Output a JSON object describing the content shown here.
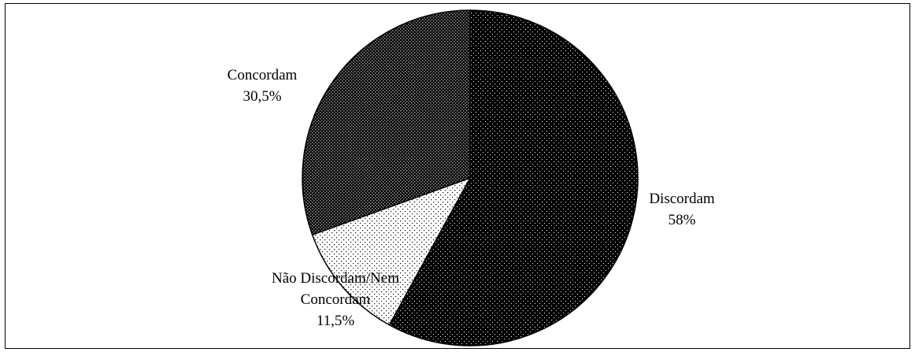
{
  "chart_data": {
    "type": "pie",
    "slices": [
      {
        "label_lines": [
          "Discordam",
          "58%"
        ],
        "value": 58,
        "pattern": "dense-dots"
      },
      {
        "label_lines": [
          "Não Discordam/Nem",
          "Concordam",
          "11,5%"
        ],
        "value": 11.5,
        "pattern": "sparse-dots"
      },
      {
        "label_lines": [
          "Concordam",
          "30,5%"
        ],
        "value": 30.5,
        "pattern": "checker"
      }
    ],
    "start_angle": "12 o'clock",
    "direction": "clockwise",
    "legend": "none"
  }
}
